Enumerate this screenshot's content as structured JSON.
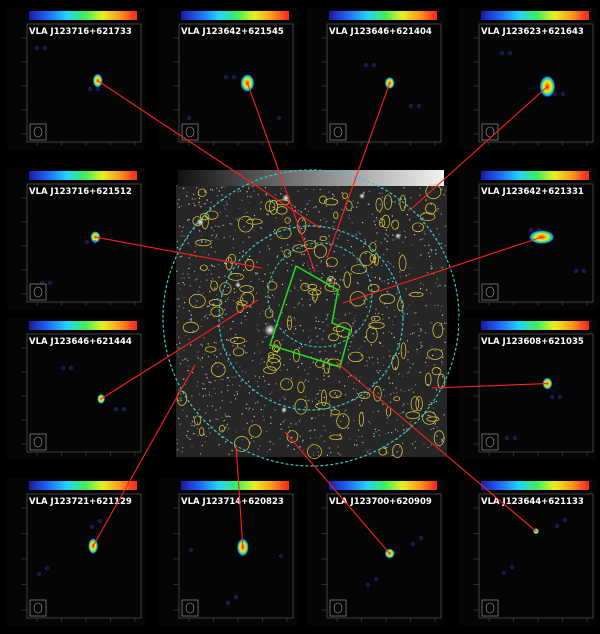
{
  "figure": {
    "background": "#000000",
    "center_field": {
      "name": "radio-source-field-image",
      "circle_color": "#38c8c8",
      "contour_color": "#e6d23a",
      "outline_color": "#22dd22",
      "line_color": "#ff2020"
    },
    "colorbar_colors": [
      "#1a1aa0",
      "#1e6bff",
      "#22d3ff",
      "#3cf05a",
      "#e8f020",
      "#ff9a1a",
      "#ff2020"
    ],
    "sources": [
      {
        "label": "VLA J123716+621733"
      },
      {
        "label": "VLA J123642+621545"
      },
      {
        "label": "VLA J123646+621404"
      },
      {
        "label": "VLA J123623+621643"
      },
      {
        "label": "VLA J123716+621512"
      },
      {
        "label": "VLA J123642+621331"
      },
      {
        "label": "VLA J123646+621444"
      },
      {
        "label": "VLA J123608+621035"
      },
      {
        "label": "VLA J123721+621129"
      },
      {
        "label": "VLA J123714+620823"
      },
      {
        "label": "VLA J123700+620909"
      },
      {
        "label": "VLA J123644+621133"
      }
    ]
  }
}
